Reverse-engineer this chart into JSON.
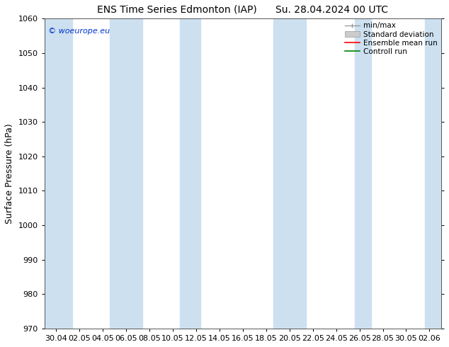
{
  "title1": "ENS Time Series Edmonton (IAP)",
  "title2": "Su. 28.04.2024 00 UTC",
  "ylabel": "Surface Pressure (hPa)",
  "ylim": [
    970,
    1060
  ],
  "yticks": [
    970,
    980,
    990,
    1000,
    1010,
    1020,
    1030,
    1040,
    1050,
    1060
  ],
  "xlabels": [
    "30.04",
    "02.05",
    "04.05",
    "06.05",
    "08.05",
    "10.05",
    "12.05",
    "14.05",
    "16.05",
    "18.05",
    "20.05",
    "22.05",
    "24.05",
    "26.05",
    "28.05",
    "30.05",
    "02.06"
  ],
  "shade_color": "#cde0f0",
  "background_color": "#ffffff",
  "legend_entries": [
    "min/max",
    "Standard deviation",
    "Ensemble mean run",
    "Controll run"
  ],
  "legend_line_colors": [
    "#999999",
    "#bbbbbb",
    "#ff0000",
    "#008000"
  ],
  "watermark": "© woeurope.eu",
  "title_fontsize": 10,
  "ylabel_fontsize": 9,
  "tick_fontsize": 8,
  "legend_fontsize": 7.5
}
